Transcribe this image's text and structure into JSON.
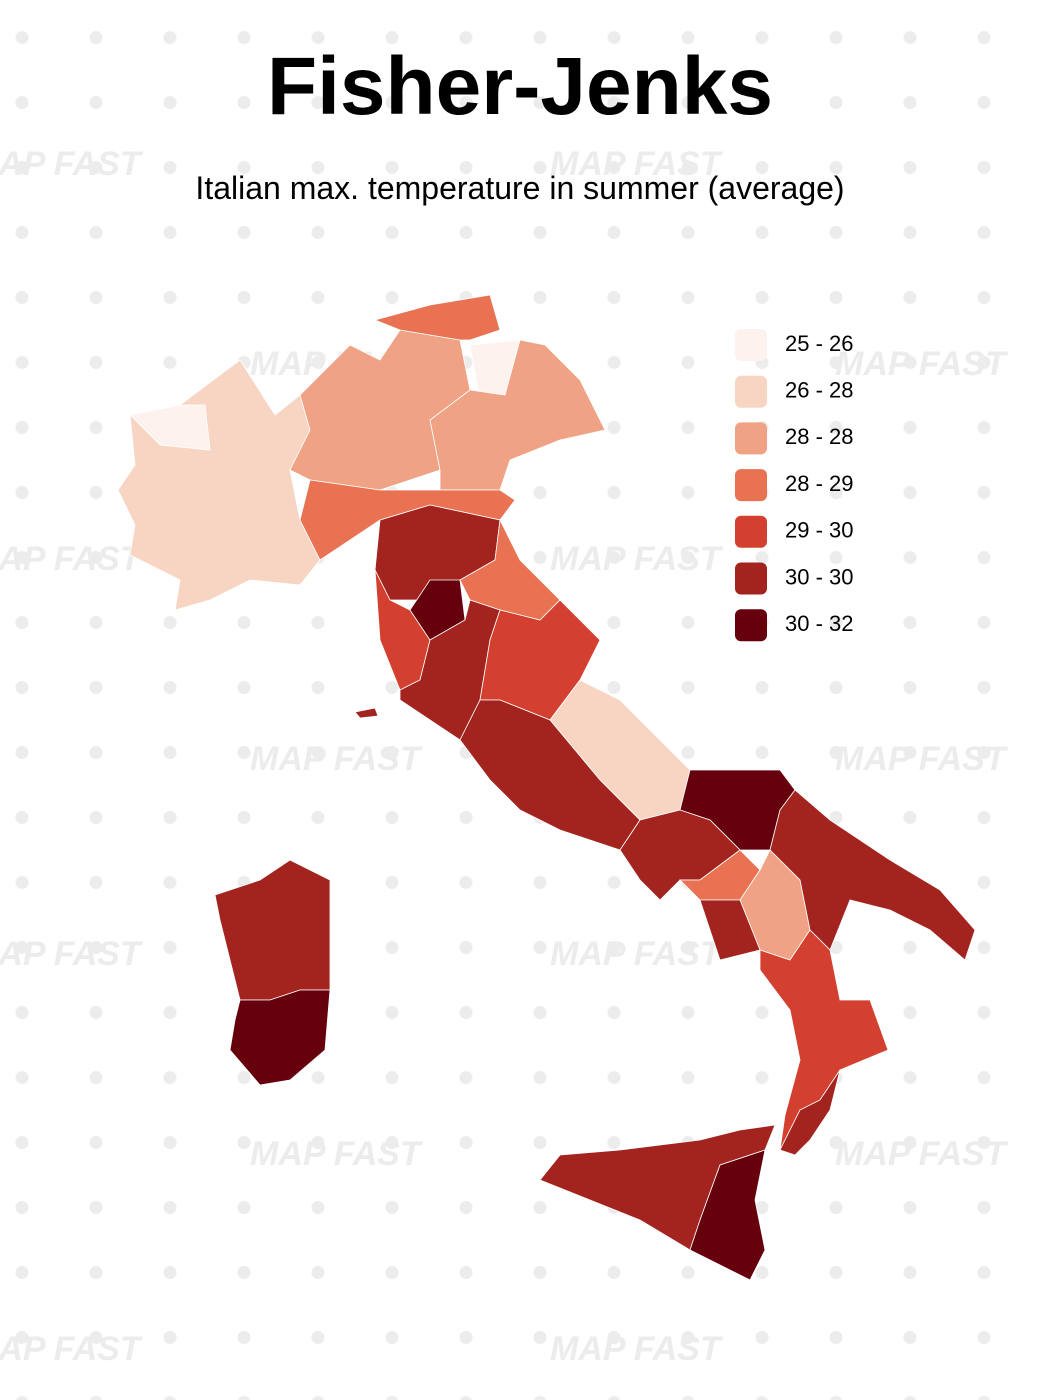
{
  "title": "Fisher-Jenks",
  "subtitle": "Italian max. temperature in summer (average)",
  "watermark": "MAP FAST",
  "legend": [
    {
      "label": "25 - 26",
      "color": "#fdf2ed"
    },
    {
      "label": "26 - 28",
      "color": "#f8d5c3"
    },
    {
      "label": "28 - 28",
      "color": "#f0a284"
    },
    {
      "label": "28 - 29",
      "color": "#e87252"
    },
    {
      "label": "29 - 30",
      "color": "#d3402f"
    },
    {
      "label": "30 - 30",
      "color": "#a3241f"
    },
    {
      "label": "30 - 32",
      "color": "#67000d"
    }
  ]
}
